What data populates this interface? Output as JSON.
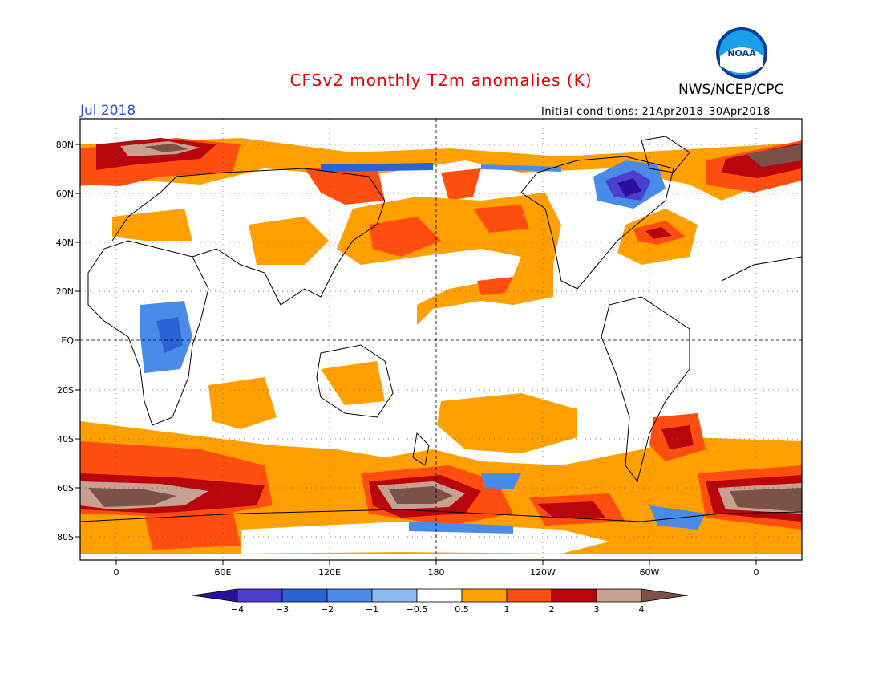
{
  "header": {
    "title": "CFSv2 monthly T2m anomalies (K)",
    "agency": "NWS/NCEP/CPC",
    "logo_text": "NOAA",
    "month": "Jul 2018",
    "initial_conditions": "Initial conditions: 21Apr2018–30Apr2018"
  },
  "map": {
    "lon_labels": [
      "0",
      "60E",
      "120E",
      "180",
      "120W",
      "60W",
      "0"
    ],
    "lat_labels": [
      "80N",
      "60N",
      "40N",
      "20N",
      "EQ",
      "20S",
      "40S",
      "60S",
      "80S"
    ]
  },
  "colorbar": {
    "labels": [
      "−4",
      "−3",
      "−2",
      "−1",
      "−0.5",
      "0.5",
      "1",
      "2",
      "3",
      "4"
    ],
    "colors": [
      "#2a0f9e",
      "#4a3fd0",
      "#2a62d8",
      "#4a8ae8",
      "#8ab8f0",
      "#ffffff",
      "#ffa000",
      "#ff4e10",
      "#b8060c",
      "#c8a090",
      "#7a5248"
    ]
  },
  "colors": {
    "title": "#e00000",
    "month": "#2a50e0",
    "anomaly_warm1": "#ffa000",
    "anomaly_warm2": "#ff4e10",
    "anomaly_warm3": "#b8060c",
    "anomaly_warm4": "#c8a090",
    "anomaly_warm5": "#7a5248",
    "anomaly_cool1": "#4a8ae8",
    "anomaly_cool2": "#2a62d8",
    "anomaly_cool3": "#2a0f9e"
  }
}
